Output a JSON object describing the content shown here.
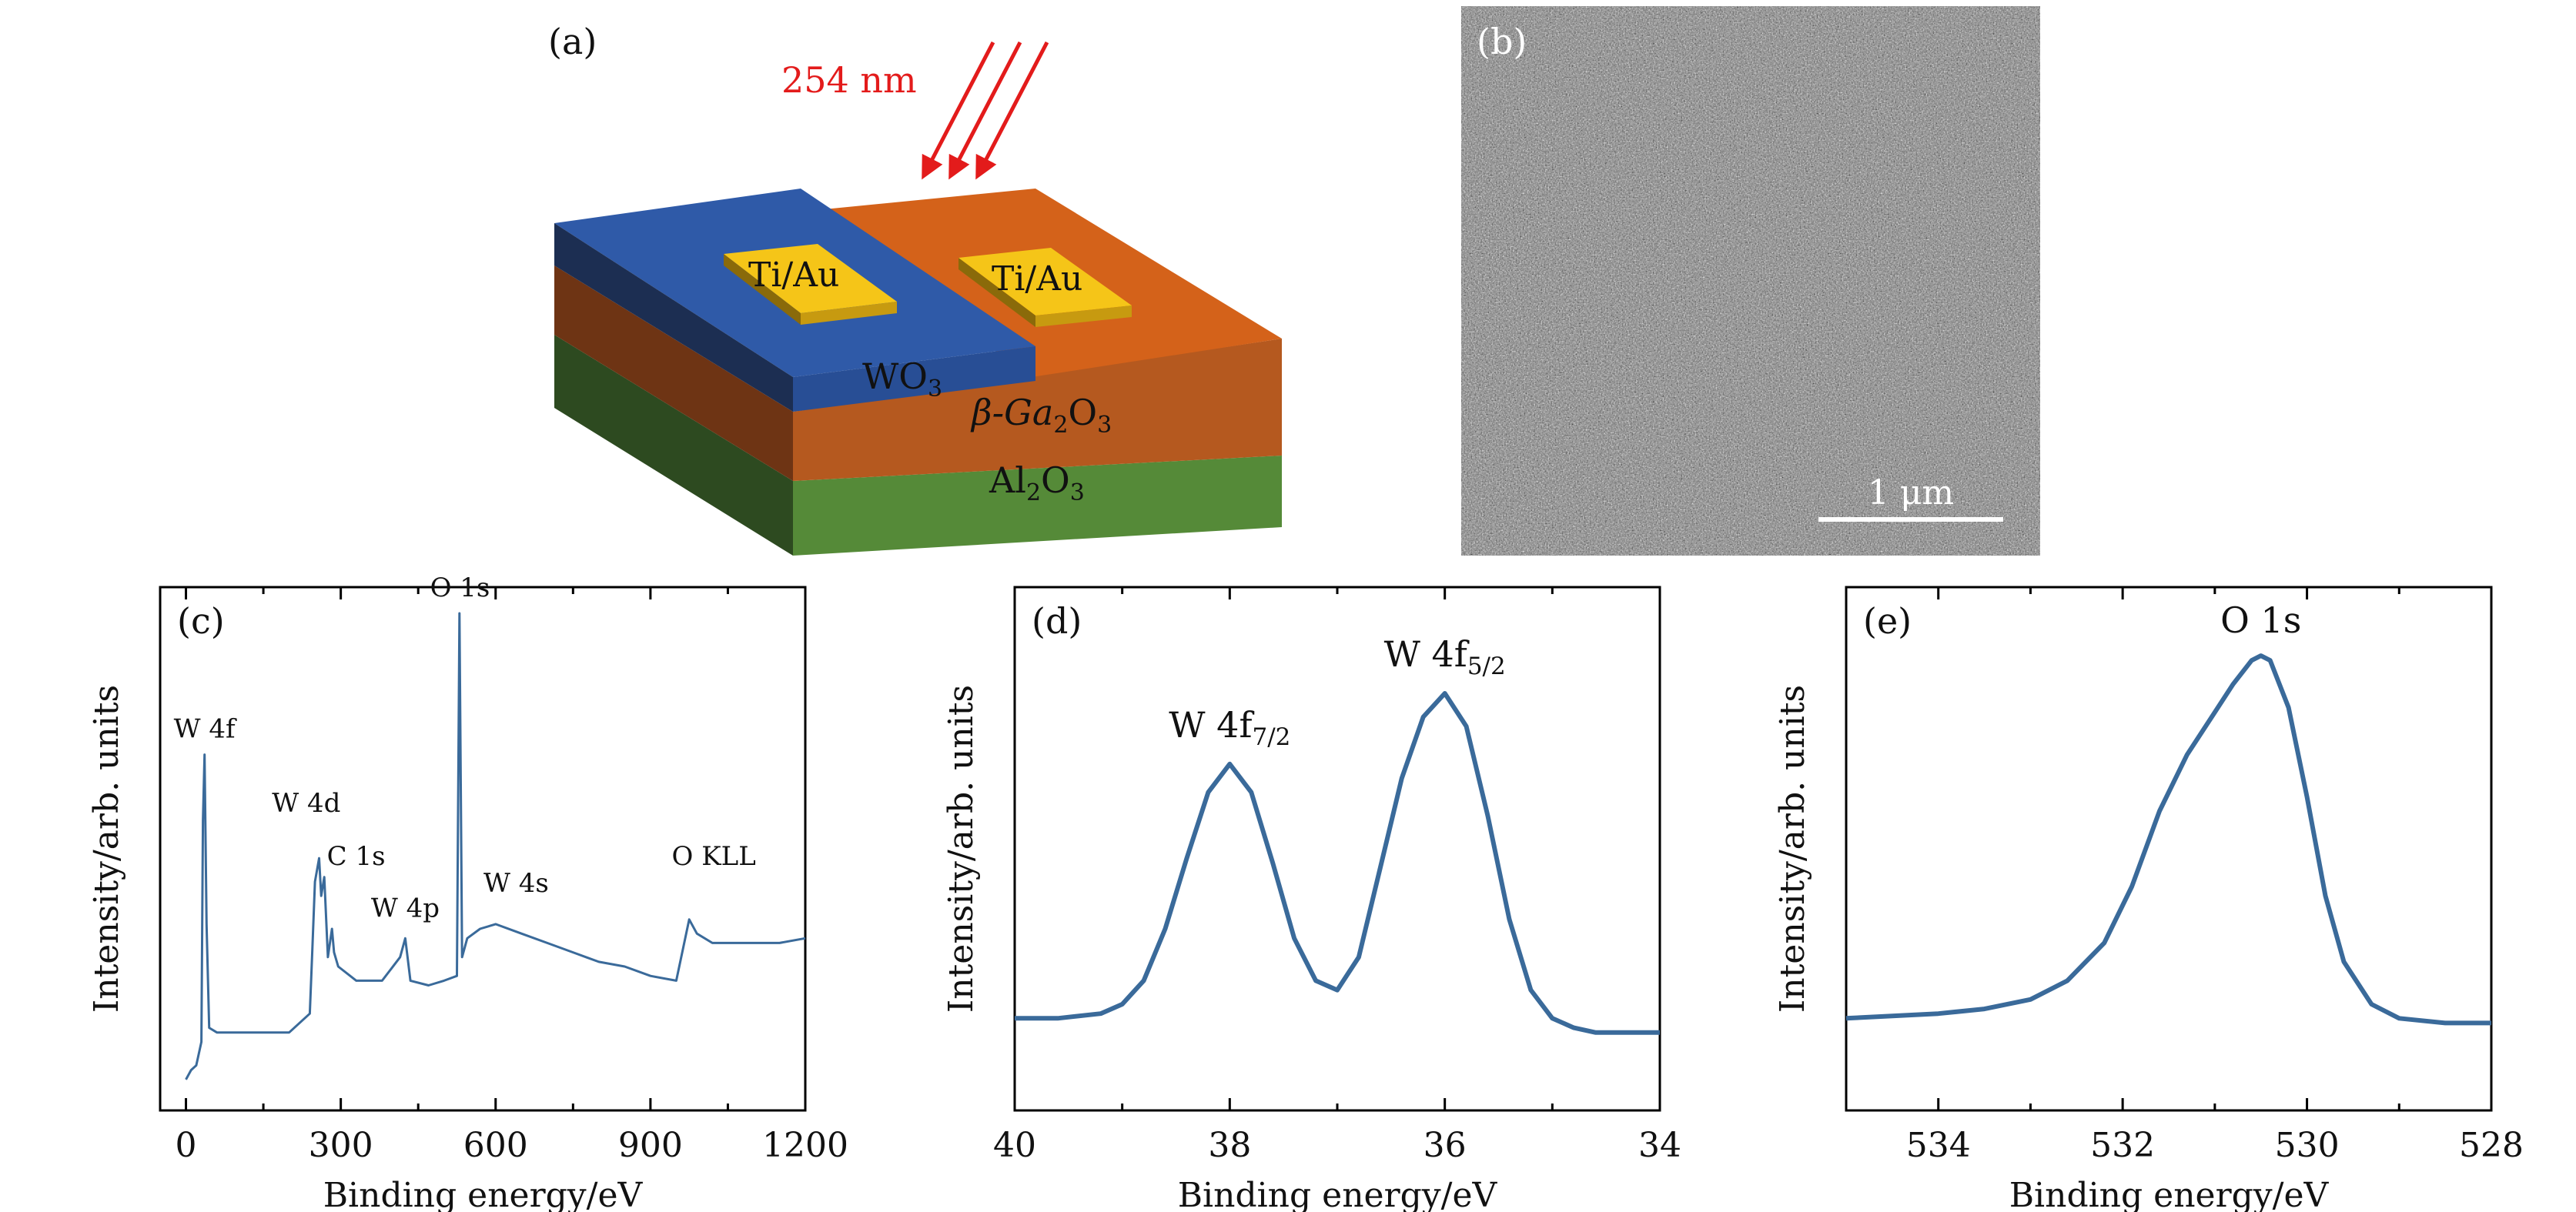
{
  "panel_a": {
    "label": "(a)",
    "wavelength": "254 nm",
    "electrode_label": "Ti/Au",
    "layer_wo3": "WO",
    "layer_wo3_sub": "3",
    "layer_ga_prefix": "β-Ga",
    "layer_ga_sub1": "2",
    "layer_ga_mid": "O",
    "layer_ga_sub2": "3",
    "layer_al": "Al",
    "layer_al_sub1": "2",
    "layer_al_mid": "O",
    "layer_al_sub2": "3",
    "colors": {
      "wo3": "#2f5aa8",
      "ga2o3_top": "#d4621a",
      "ga2o3_side": "#b5591f",
      "al2o3": "#558a38",
      "electrode": "#f5c518",
      "arrow": "#e31b1b"
    }
  },
  "panel_b": {
    "label": "(b)",
    "scale_bar": "1 μm"
  },
  "chart_data": [
    {
      "type": "line",
      "panel": "(c)",
      "xlabel": "Binding energy/eV",
      "ylabel": "Intensity/arb. units",
      "xlim": [
        -50,
        1200
      ],
      "ylim": [
        0,
        1
      ],
      "xticks": [
        0,
        300,
        600,
        900,
        1200
      ],
      "series": [
        {
          "x": [
            0,
            10,
            20,
            30,
            33,
            36,
            40,
            45,
            60,
            100,
            150,
            200,
            240,
            245,
            250,
            258,
            262,
            268,
            275,
            283,
            287,
            295,
            330,
            380,
            415,
            425,
            435,
            470,
            500,
            525,
            530,
            535,
            545,
            570,
            600,
            650,
            700,
            750,
            800,
            850,
            900,
            950,
            975,
            990,
            1020,
            1060,
            1100,
            1150,
            1200
          ],
          "y": [
            0.01,
            0.03,
            0.04,
            0.09,
            0.56,
            0.7,
            0.34,
            0.12,
            0.11,
            0.11,
            0.11,
            0.11,
            0.15,
            0.29,
            0.43,
            0.48,
            0.4,
            0.44,
            0.27,
            0.33,
            0.28,
            0.25,
            0.22,
            0.22,
            0.27,
            0.31,
            0.22,
            0.21,
            0.22,
            0.23,
            1.0,
            0.27,
            0.31,
            0.33,
            0.34,
            0.32,
            0.3,
            0.28,
            0.26,
            0.25,
            0.23,
            0.22,
            0.35,
            0.32,
            0.3,
            0.3,
            0.3,
            0.3,
            0.31
          ]
        }
      ],
      "annotations": [
        {
          "text": "O 1s",
          "x": 531,
          "y": 1.0
        },
        {
          "text": "W 4f",
          "x": 36,
          "y": 0.7
        },
        {
          "text": "W 4d",
          "x": 248,
          "y": 0.48
        },
        {
          "text": "C 1s",
          "x": 285,
          "y": 0.4
        },
        {
          "text": "W 4p",
          "x": 425,
          "y": 0.31
        },
        {
          "text": "W 4s",
          "x": 595,
          "y": 0.34
        },
        {
          "text": "O KLL",
          "x": 978,
          "y": 0.4
        }
      ],
      "line_color": "#3a6a9a"
    },
    {
      "type": "line",
      "panel": "(d)",
      "xlabel": "Binding energy/eV",
      "ylabel": "Intensity/arb. units",
      "xlim": [
        40,
        34
      ],
      "ylim": [
        0,
        1
      ],
      "xticks": [
        40,
        38,
        36,
        34
      ],
      "series": [
        {
          "x": [
            40,
            39.6,
            39.2,
            39.0,
            38.8,
            38.6,
            38.4,
            38.2,
            38.0,
            37.8,
            37.6,
            37.4,
            37.2,
            37.0,
            36.8,
            36.6,
            36.4,
            36.2,
            36.0,
            35.8,
            35.6,
            35.4,
            35.2,
            35.0,
            34.8,
            34.6,
            34.4,
            34.0
          ],
          "y": [
            0.14,
            0.14,
            0.15,
            0.17,
            0.22,
            0.33,
            0.48,
            0.62,
            0.68,
            0.62,
            0.47,
            0.31,
            0.22,
            0.2,
            0.27,
            0.46,
            0.65,
            0.78,
            0.83,
            0.76,
            0.57,
            0.35,
            0.2,
            0.14,
            0.12,
            0.11,
            0.11,
            0.11
          ]
        }
      ],
      "annotations": [
        {
          "text": "W 4f",
          "sub": "7/2",
          "x": 38.0,
          "y": 0.68
        },
        {
          "text": "W 4f",
          "sub": "5/2",
          "x": 36.0,
          "y": 0.83
        }
      ],
      "line_color": "#3a6a9a"
    },
    {
      "type": "line",
      "panel": "(e)",
      "xlabel": "Binding energy/eV",
      "ylabel": "Intensity/arb. units",
      "xlim": [
        535,
        528
      ],
      "ylim": [
        0,
        1
      ],
      "xticks": [
        534,
        532,
        530,
        528
      ],
      "series": [
        {
          "x": [
            535,
            534,
            533.5,
            533,
            532.6,
            532.2,
            531.9,
            531.6,
            531.3,
            531.0,
            530.8,
            530.6,
            530.5,
            530.4,
            530.2,
            530.0,
            529.8,
            529.6,
            529.3,
            529.0,
            528.5,
            528
          ],
          "y": [
            0.14,
            0.15,
            0.16,
            0.18,
            0.22,
            0.3,
            0.42,
            0.58,
            0.7,
            0.79,
            0.85,
            0.9,
            0.91,
            0.9,
            0.8,
            0.61,
            0.4,
            0.26,
            0.17,
            0.14,
            0.13,
            0.13
          ]
        }
      ],
      "annotations": [
        {
          "text": "O 1s",
          "x": 530.5,
          "y": 0.91
        }
      ],
      "line_color": "#3a6a9a"
    }
  ]
}
